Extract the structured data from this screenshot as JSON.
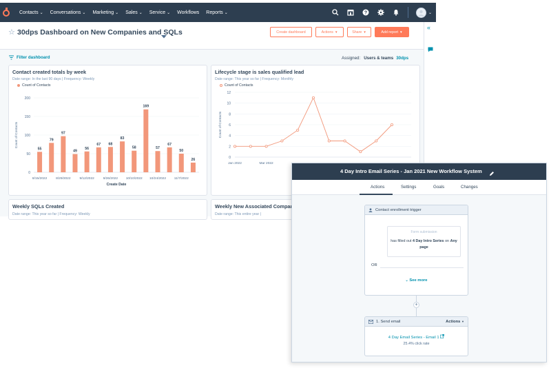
{
  "nav": {
    "items": [
      "Contacts",
      "Conversations",
      "Marketing",
      "Sales",
      "Service",
      "Workflows",
      "Reports"
    ],
    "has_chevron": [
      true,
      true,
      true,
      true,
      true,
      false,
      true
    ]
  },
  "header": {
    "title": "30dps Dashboard on New Companies and SQLs",
    "buttons": {
      "create": "Create dashboard",
      "actions": "Actions",
      "share": "Share",
      "add_report": "Add report"
    }
  },
  "filter": {
    "label": "Filter dashboard",
    "assigned_label": "Assigned:",
    "assigned_value": "Users & teams",
    "assigned_link": "30dps"
  },
  "cards": {
    "c1": {
      "title": "Contact created totals by week",
      "meta": "Date range: In the last 90 days   |   Frequency: Weekly",
      "legend": "Count of Contacts"
    },
    "c2": {
      "title": "Lifecycle stage is sales qualified lead",
      "meta": "Date range: This year so far   |   Frequency: Monthly",
      "legend": "Count of Contacts"
    },
    "c3": {
      "title": "Weekly SQLs Created",
      "meta": "Date range: This year so far   |   Frequency: Weekly"
    },
    "c4": {
      "title": "Weekly New Associated Compar",
      "meta": "Date range: This entire year   |"
    }
  },
  "chart_data": [
    {
      "type": "bar",
      "title": "Contact created totals by week",
      "xlabel": "Create Date",
      "ylabel": "Count of Contacts",
      "ylim": [
        0,
        200
      ],
      "yticks": [
        0,
        50,
        100,
        150,
        200
      ],
      "xticklabels": [
        "8/15/2022",
        "8/29/2022",
        "9/12/2022",
        "9/26/2022",
        "10/10/2022",
        "10/24/2022",
        "11/7/2022"
      ],
      "values": [
        55,
        79,
        97,
        49,
        56,
        67,
        68,
        83,
        58,
        169,
        57,
        67,
        50,
        26
      ],
      "series": [
        {
          "name": "Count of Contacts",
          "values": [
            55,
            79,
            97,
            49,
            56,
            67,
            68,
            83,
            58,
            169,
            57,
            67,
            50,
            26
          ]
        }
      ]
    },
    {
      "type": "line",
      "title": "Lifecycle stage is sales qualified lead",
      "ylabel": "Count of Contacts",
      "ylim": [
        0,
        12
      ],
      "yticks": [
        0,
        2,
        4,
        6,
        8,
        10,
        12
      ],
      "xticklabels": [
        "Jan 2022",
        "Mar 2022"
      ],
      "values": [
        2,
        2,
        2,
        3,
        5,
        11,
        3,
        3,
        1,
        3,
        6
      ],
      "series": [
        {
          "name": "Count of Contacts",
          "values": [
            2,
            2,
            2,
            3,
            5,
            11,
            3,
            3,
            1,
            3,
            6
          ]
        }
      ]
    }
  ],
  "workflow": {
    "title": "4 Day Intro Email Series - Jan 2021 New Workflow System",
    "tabs": [
      "Actions",
      "Settings",
      "Goals",
      "Changes"
    ],
    "trigger": {
      "header": "Contact enrollment trigger",
      "filter_type": "Form submission",
      "pre": "has filled out",
      "form": "4 Day Intro Series",
      "mid": "on",
      "page_a": "Any",
      "page_b": "page",
      "or": "OR",
      "see_more": "See more"
    },
    "step": {
      "header": "1. Send email",
      "actions": "Actions",
      "email": "4 Day Email Series - Email 1",
      "rate": "25.4% click rate"
    }
  },
  "colors": {
    "nav": "#2d3e50",
    "accent": "#ff7a59",
    "bar": "#f2977a",
    "link": "#0091ae"
  }
}
